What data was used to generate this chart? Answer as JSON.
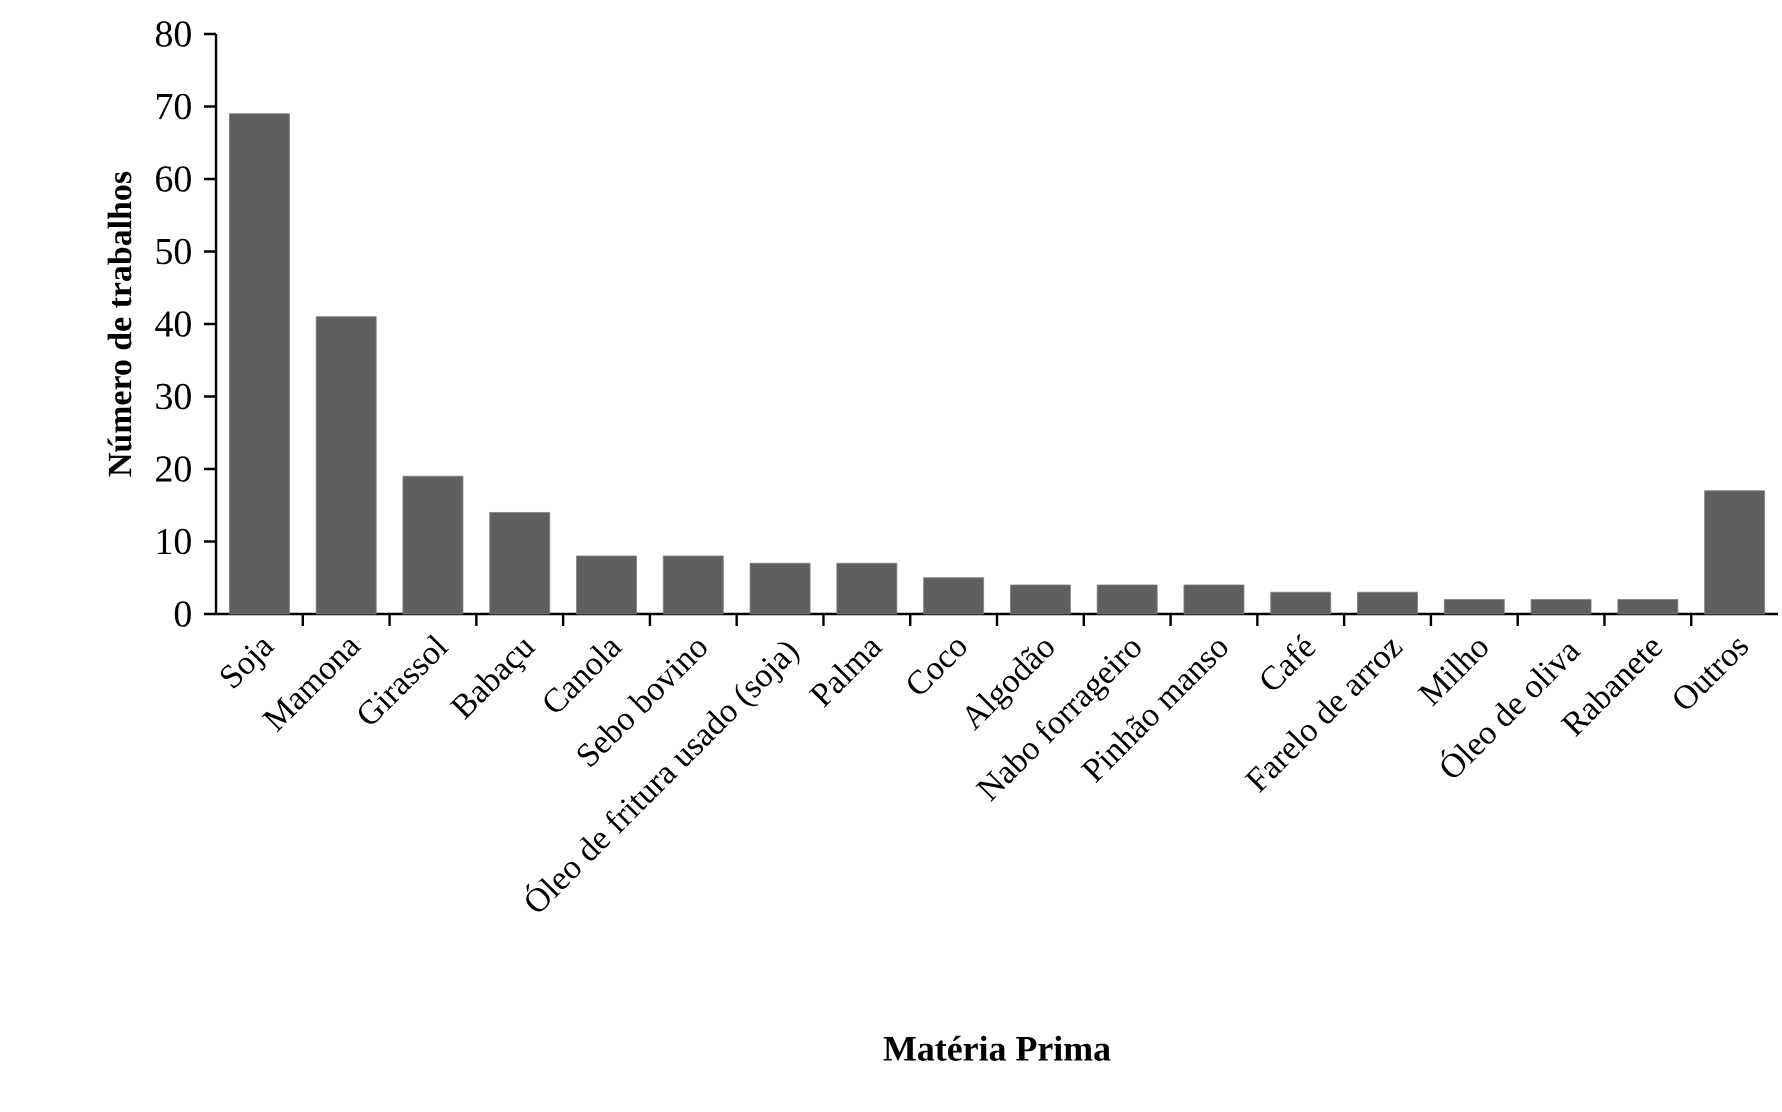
{
  "chart_data": {
    "type": "bar",
    "xlabel": "Matéria Prima",
    "ylabel": "Número  de trabalhos",
    "categories": [
      "Soja",
      "Mamona",
      "Girassol",
      "Babaçu",
      "Canola",
      "Sebo bovino",
      "Óleo de fritura usado (soja)",
      "Palma",
      "Coco",
      "Algodão",
      "Nabo forrageiro",
      "Pinhão manso",
      "Café",
      "Farelo de arroz",
      "Milho",
      "Óleo de oliva",
      "Rabanete",
      "Outros"
    ],
    "values": [
      69,
      41,
      19,
      14,
      8,
      8,
      7,
      7,
      5,
      4,
      4,
      4,
      3,
      3,
      2,
      2,
      2,
      17
    ],
    "color": "#5f5f5f",
    "ylim": [
      0,
      80
    ],
    "yticks": [
      0,
      10,
      20,
      30,
      40,
      50,
      60,
      70,
      80
    ]
  }
}
